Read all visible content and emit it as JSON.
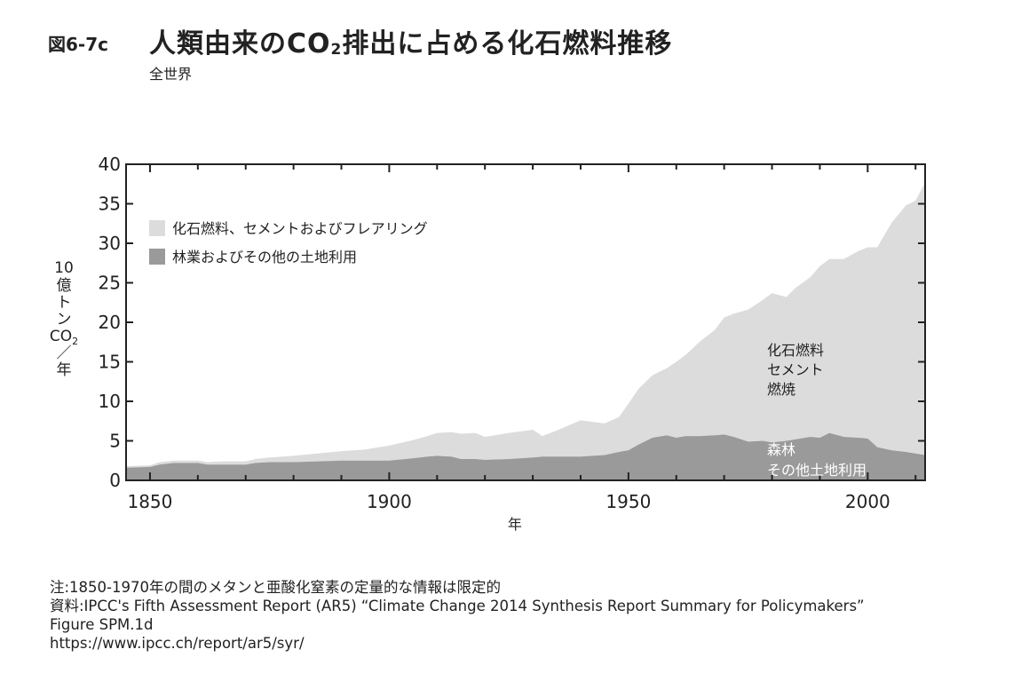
{
  "figure": {
    "label": "図6-7c",
    "title_main": "人類由来のCO",
    "title_sub": "2",
    "title_rest": "排出に占める化石燃料推移",
    "subtitle": "全世界"
  },
  "chart_data": {
    "type": "area",
    "stacked": true,
    "xlabel": "年",
    "ylabel_lines": [
      "10",
      "億",
      "ト",
      "ン",
      "CO",
      "／",
      "年"
    ],
    "ylabel_sub": "2",
    "xlim": [
      1845,
      2012
    ],
    "ylim": [
      0,
      40
    ],
    "x_ticks": [
      1850,
      1900,
      1950,
      2000
    ],
    "y_ticks": [
      0,
      5,
      10,
      15,
      20,
      25,
      30,
      35,
      40
    ],
    "colors": {
      "fossil": "#dcdcdc",
      "forestry": "#9a9a9a",
      "frame": "#222222"
    },
    "legend_position": "top-left",
    "legend": [
      {
        "name": "化石燃料、セメントおよびフレアリング",
        "color": "#dcdcdc"
      },
      {
        "name": "林業およびその他の土地利用",
        "color": "#9a9a9a"
      }
    ],
    "annotations": {
      "fossil": [
        "化石燃料",
        "セメント",
        "燃焼"
      ],
      "forestry": [
        "森林",
        "その他土地利用"
      ]
    },
    "x": [
      1845,
      1850,
      1852,
      1855,
      1860,
      1862,
      1865,
      1870,
      1872,
      1875,
      1880,
      1885,
      1890,
      1895,
      1900,
      1905,
      1908,
      1910,
      1913,
      1915,
      1918,
      1920,
      1925,
      1930,
      1932,
      1935,
      1940,
      1945,
      1948,
      1950,
      1952,
      1955,
      1958,
      1960,
      1962,
      1965,
      1968,
      1970,
      1972,
      1975,
      1978,
      1980,
      1983,
      1985,
      1988,
      1990,
      1992,
      1995,
      1998,
      2000,
      2002,
      2005,
      2008,
      2010,
      2012
    ],
    "series": [
      {
        "name": "林業およびその他の土地利用",
        "values": [
          1.6,
          1.7,
          2.0,
          2.2,
          2.2,
          2.0,
          2.0,
          2.0,
          2.2,
          2.3,
          2.3,
          2.4,
          2.5,
          2.5,
          2.5,
          2.8,
          3.0,
          3.1,
          3.0,
          2.7,
          2.7,
          2.6,
          2.7,
          2.9,
          3.0,
          3.0,
          3.0,
          3.2,
          3.6,
          3.8,
          4.5,
          5.4,
          5.7,
          5.4,
          5.6,
          5.6,
          5.7,
          5.8,
          5.5,
          4.9,
          5.0,
          4.8,
          5.0,
          5.2,
          5.5,
          5.4,
          6.0,
          5.5,
          5.4,
          5.3,
          4.2,
          3.8,
          3.6,
          3.4,
          3.2
        ]
      },
      {
        "name": "化石燃料、セメントおよびフレアリング",
        "values": [
          0.2,
          0.2,
          0.3,
          0.3,
          0.3,
          0.3,
          0.4,
          0.4,
          0.5,
          0.6,
          0.8,
          1.0,
          1.2,
          1.4,
          1.9,
          2.3,
          2.6,
          2.9,
          3.1,
          3.2,
          3.3,
          2.9,
          3.3,
          3.5,
          2.6,
          3.3,
          4.6,
          4.0,
          4.4,
          5.9,
          7.0,
          7.9,
          8.5,
          9.6,
          10.3,
          12.0,
          13.3,
          14.8,
          15.6,
          16.7,
          17.8,
          18.9,
          18.2,
          19.2,
          20.2,
          21.7,
          22.0,
          22.5,
          23.6,
          24.2,
          25.3,
          28.8,
          31.2,
          32.0,
          34.5
        ]
      }
    ]
  },
  "notes": {
    "note": "注:1850-1970年の間のメタンと亜酸化窒素の定量的な情報は限定的",
    "source": "資料:IPCC's Fifth Assessment Report (AR5) “Climate Change 2014 Synthesis Report Summary for Policymakers”",
    "figure_ref": "Figure SPM.1d",
    "url": "https://www.ipcc.ch/report/ar5/syr/"
  }
}
